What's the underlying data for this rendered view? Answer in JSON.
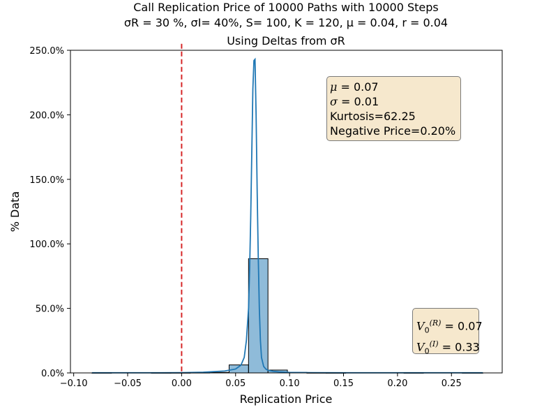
{
  "title": {
    "line1": "Call Replication Price of 10000 Paths with 10000 Steps",
    "line2": "σR = 30 %, σI= 40%, S= 100, K = 120, μ = 0.04, r = 0.04",
    "line3": "Using Deltas from σR"
  },
  "chart_data": {
    "type": "bar",
    "title": "Call Replication Price of 10000 Paths with 10000 Steps / σR = 30 %, σI= 40%, S= 100, K = 120, μ = 0.04, r = 0.04 / Using Deltas from σR",
    "xlabel": "Replication Price",
    "ylabel": "% Data",
    "xlim": [
      -0.103,
      0.297
    ],
    "ylim": [
      0,
      2.5
    ],
    "x_ticks": [
      -0.1,
      -0.05,
      0.0,
      0.05,
      0.1,
      0.15,
      0.2,
      0.25
    ],
    "x_tick_labels": [
      "−0.10",
      "−0.05",
      "0.00",
      "0.05",
      "0.10",
      "0.15",
      "0.20",
      "0.25"
    ],
    "y_ticks": [
      0,
      0.5,
      1.0,
      1.5,
      2.0,
      2.5
    ],
    "y_tick_labels": [
      "0.0%",
      "50.0%",
      "100.0%",
      "150.0%",
      "200.0%",
      "250.0%"
    ],
    "histogram": {
      "bin_edges": [
        -0.083,
        -0.065,
        -0.046,
        -0.028,
        -0.01,
        0.008,
        0.026,
        0.044,
        0.062,
        0.08,
        0.098,
        0.116,
        0.134,
        0.152,
        0.17,
        0.188,
        0.206,
        0.224,
        0.242,
        0.26,
        0.279
      ],
      "values": [
        0.0005,
        0.0,
        0.0,
        0.0005,
        0.001,
        0.002,
        0.004,
        0.062,
        0.885,
        0.022,
        0.004,
        0.001,
        0.0005,
        0.0,
        0.0,
        0.0,
        0.0005,
        0.0,
        0.0,
        0.0005
      ]
    },
    "kde": {
      "x": [
        -0.083,
        -0.05,
        -0.02,
        0.0,
        0.02,
        0.03,
        0.04,
        0.05,
        0.055,
        0.058,
        0.06,
        0.062,
        0.063,
        0.064,
        0.065,
        0.066,
        0.067,
        0.068,
        0.069,
        0.07,
        0.071,
        0.072,
        0.073,
        0.074,
        0.076,
        0.078,
        0.08,
        0.085,
        0.09,
        0.1,
        0.12,
        0.15,
        0.2,
        0.25,
        0.279
      ],
      "y": [
        0.001,
        0.001,
        0.001,
        0.002,
        0.005,
        0.01,
        0.015,
        0.03,
        0.06,
        0.12,
        0.25,
        0.5,
        0.8,
        1.2,
        1.7,
        2.2,
        2.42,
        2.43,
        2.0,
        1.4,
        0.9,
        0.5,
        0.25,
        0.12,
        0.05,
        0.03,
        0.02,
        0.012,
        0.008,
        0.004,
        0.002,
        0.001,
        0.001,
        0.001,
        0.001
      ]
    },
    "vline": {
      "x": 0.0,
      "color": "#d62728",
      "style": "dashed"
    },
    "bar_color": "#1f77b4",
    "line_color": "#1f77b4",
    "grid": false,
    "legend": "none"
  },
  "stats_box": {
    "mu_sym": "μ",
    "mu_val": " = 0.07",
    "sigma_sym": "σ",
    "sigma_val": " = 0.01",
    "kurtosis": "Kurtosis=62.25",
    "negative": "Negative Price=0.20%"
  },
  "v0_box": {
    "v0r_sup": "(R)",
    "v0r_val": " = 0.07",
    "v0i_sup": "(I)",
    "v0i_val": " = 0.33"
  }
}
